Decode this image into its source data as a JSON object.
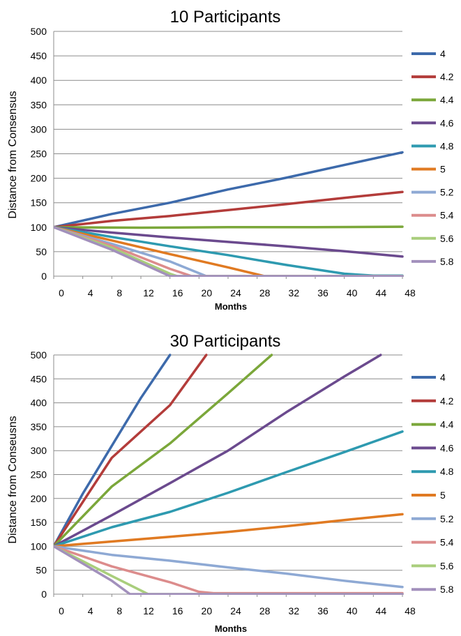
{
  "chart_data": [
    {
      "type": "line",
      "title": "10 Participants",
      "xlabel": "Months",
      "ylabel": "Distance from Consensus",
      "xlim": [
        0,
        48
      ],
      "ylim": [
        0,
        500
      ],
      "xticks": [
        "0",
        "4",
        "8",
        "12",
        "16",
        "20",
        "24",
        "28",
        "32",
        "36",
        "40",
        "44",
        "48"
      ],
      "yticks": [
        "0",
        "50",
        "100",
        "150",
        "200",
        "250",
        "300",
        "350",
        "400",
        "450",
        "500"
      ],
      "grid": "horizontal",
      "legend_position": "right",
      "series": [
        {
          "name": "4",
          "color": "#3D6AAB",
          "points": [
            [
              0,
              100
            ],
            [
              8,
              127
            ],
            [
              16,
              150
            ],
            [
              24,
              177
            ],
            [
              32,
              201
            ],
            [
              40,
              227
            ],
            [
              48,
              253
            ]
          ]
        },
        {
          "name": "4.2",
          "color": "#B33C3A",
          "points": [
            [
              0,
              100
            ],
            [
              8,
              113
            ],
            [
              16,
              123
            ],
            [
              24,
              135
            ],
            [
              32,
              147
            ],
            [
              40,
              160
            ],
            [
              48,
              172
            ]
          ]
        },
        {
          "name": "4.4",
          "color": "#7BA73A",
          "points": [
            [
              0,
              100
            ],
            [
              12,
              99
            ],
            [
              24,
              100
            ],
            [
              36,
              100
            ],
            [
              48,
              101
            ]
          ]
        },
        {
          "name": "4.6",
          "color": "#6B4A8E",
          "points": [
            [
              0,
              100
            ],
            [
              8,
              89
            ],
            [
              16,
              79
            ],
            [
              24,
              70
            ],
            [
              32,
              61
            ],
            [
              40,
              51
            ],
            [
              48,
              40
            ]
          ]
        },
        {
          "name": "4.8",
          "color": "#2E9AB0",
          "points": [
            [
              0,
              100
            ],
            [
              8,
              80
            ],
            [
              16,
              61
            ],
            [
              24,
              43
            ],
            [
              32,
              23
            ],
            [
              40,
              5
            ],
            [
              44,
              1
            ],
            [
              48,
              1
            ]
          ]
        },
        {
          "name": "5",
          "color": "#E07A22",
          "points": [
            [
              0,
              100
            ],
            [
              8,
              73
            ],
            [
              16,
              45
            ],
            [
              24,
              18
            ],
            [
              29,
              0
            ],
            [
              48,
              0
            ]
          ]
        },
        {
          "name": "5.2",
          "color": "#8EA9D4",
          "points": [
            [
              0,
              100
            ],
            [
              8,
              66
            ],
            [
              16,
              30
            ],
            [
              21,
              0
            ],
            [
              48,
              0
            ]
          ]
        },
        {
          "name": "5.4",
          "color": "#DC8C8C",
          "points": [
            [
              0,
              100
            ],
            [
              8,
              62
            ],
            [
              16,
              15
            ],
            [
              19,
              0
            ],
            [
              48,
              0
            ]
          ]
        },
        {
          "name": "5.6",
          "color": "#A9CE7C",
          "points": [
            [
              0,
              100
            ],
            [
              8,
              58
            ],
            [
              16,
              5
            ],
            [
              17,
              0
            ],
            [
              48,
              0
            ]
          ]
        },
        {
          "name": "5.8",
          "color": "#A290BC",
          "points": [
            [
              0,
              100
            ],
            [
              8,
              54
            ],
            [
              16,
              0
            ],
            [
              48,
              0
            ]
          ]
        }
      ]
    },
    {
      "type": "line",
      "title": "30 Participants",
      "xlabel": "Months",
      "ylabel": "Distance from Conseusns",
      "xlim": [
        0,
        48
      ],
      "ylim": [
        0,
        500
      ],
      "xticks": [
        "0",
        "4",
        "8",
        "12",
        "16",
        "20",
        "24",
        "28",
        "32",
        "36",
        "40",
        "44",
        "48"
      ],
      "yticks": [
        "0",
        "50",
        "100",
        "150",
        "200",
        "250",
        "300",
        "350",
        "400",
        "450",
        "500"
      ],
      "grid": "horizontal",
      "legend_position": "right",
      "series": [
        {
          "name": "4",
          "color": "#3D6AAB",
          "points": [
            [
              0,
              100
            ],
            [
              4,
              210
            ],
            [
              8,
              310
            ],
            [
              12,
              410
            ],
            [
              16,
              500
            ]
          ]
        },
        {
          "name": "4.2",
          "color": "#B33C3A",
          "points": [
            [
              0,
              100
            ],
            [
              8,
              285
            ],
            [
              16,
              395
            ],
            [
              21,
              500
            ]
          ]
        },
        {
          "name": "4.4",
          "color": "#7BA73A",
          "points": [
            [
              0,
              100
            ],
            [
              8,
              225
            ],
            [
              16,
              315
            ],
            [
              24,
              420
            ],
            [
              30,
              500
            ]
          ]
        },
        {
          "name": "4.6",
          "color": "#6B4A8E",
          "points": [
            [
              0,
              100
            ],
            [
              8,
              165
            ],
            [
              16,
              232
            ],
            [
              24,
              300
            ],
            [
              32,
              380
            ],
            [
              40,
              455
            ],
            [
              45,
              500
            ]
          ]
        },
        {
          "name": "4.8",
          "color": "#2E9AB0",
          "points": [
            [
              0,
              100
            ],
            [
              8,
              140
            ],
            [
              16,
              172
            ],
            [
              24,
              212
            ],
            [
              32,
              255
            ],
            [
              40,
              297
            ],
            [
              48,
              340
            ]
          ]
        },
        {
          "name": "5",
          "color": "#E07A22",
          "points": [
            [
              0,
              100
            ],
            [
              8,
              110
            ],
            [
              16,
              120
            ],
            [
              24,
              130
            ],
            [
              32,
              142
            ],
            [
              40,
              155
            ],
            [
              48,
              167
            ]
          ]
        },
        {
          "name": "5.2",
          "color": "#8EA9D4",
          "points": [
            [
              0,
              100
            ],
            [
              8,
              82
            ],
            [
              16,
              70
            ],
            [
              24,
              56
            ],
            [
              32,
              43
            ],
            [
              40,
              28
            ],
            [
              48,
              15
            ]
          ]
        },
        {
          "name": "5.4",
          "color": "#DC8C8C",
          "points": [
            [
              0,
              100
            ],
            [
              8,
              58
            ],
            [
              16,
              25
            ],
            [
              20,
              5
            ],
            [
              22,
              2
            ],
            [
              48,
              2
            ]
          ]
        },
        {
          "name": "5.6",
          "color": "#A9CE7C",
          "points": [
            [
              0,
              100
            ],
            [
              8,
              38
            ],
            [
              13,
              0
            ],
            [
              48,
              0
            ]
          ]
        },
        {
          "name": "5.8",
          "color": "#A290BC",
          "points": [
            [
              0,
              100
            ],
            [
              8,
              28
            ],
            [
              10.5,
              0
            ],
            [
              48,
              0
            ]
          ]
        }
      ]
    }
  ]
}
